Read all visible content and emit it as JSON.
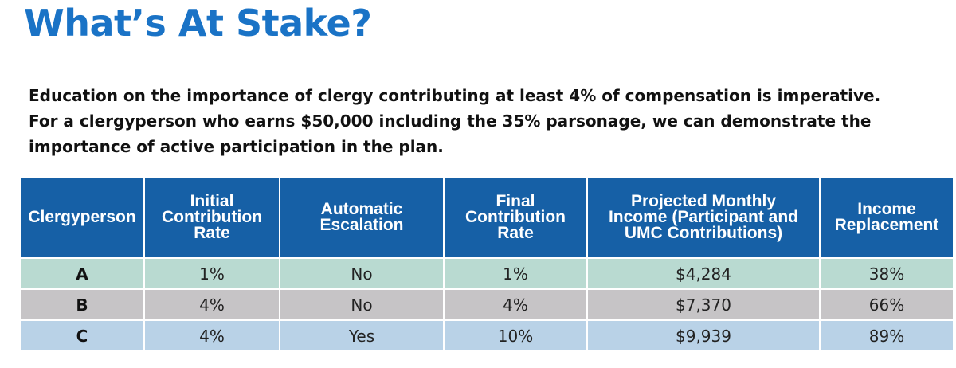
{
  "title": "What’s At Stake?",
  "intro_lines": [
    "Education on the importance of clergy contributing at least 4% of compensation is imperative.",
    "For a clergyperson who earns $50,000 including the 35% parsonage, we can demonstrate the",
    "importance of active participation in the plan."
  ],
  "table": {
    "headers": [
      [
        "Clergyperson"
      ],
      [
        "Initial",
        "Contribution",
        "Rate"
      ],
      [
        "Automatic",
        "Escalation"
      ],
      [
        "Final",
        "Contribution",
        "Rate"
      ],
      [
        "Projected Monthly",
        "Income (Participant and",
        "UMC Contributions)"
      ],
      [
        "Income",
        "Replacement"
      ]
    ],
    "rows": [
      [
        "A",
        "1%",
        "No",
        "1%",
        "$4,284",
        "38%"
      ],
      [
        "B",
        "4%",
        "No",
        "4%",
        "$7,370",
        "66%"
      ],
      [
        "C",
        "4%",
        "Yes",
        "10%",
        "$9,939",
        "89%"
      ]
    ]
  },
  "colors": {
    "title": "#1a73c6",
    "header_bg": "#1660a6",
    "row_a": "#b9dad1",
    "row_b": "#c6c4c6",
    "row_c": "#b9d2e7"
  }
}
